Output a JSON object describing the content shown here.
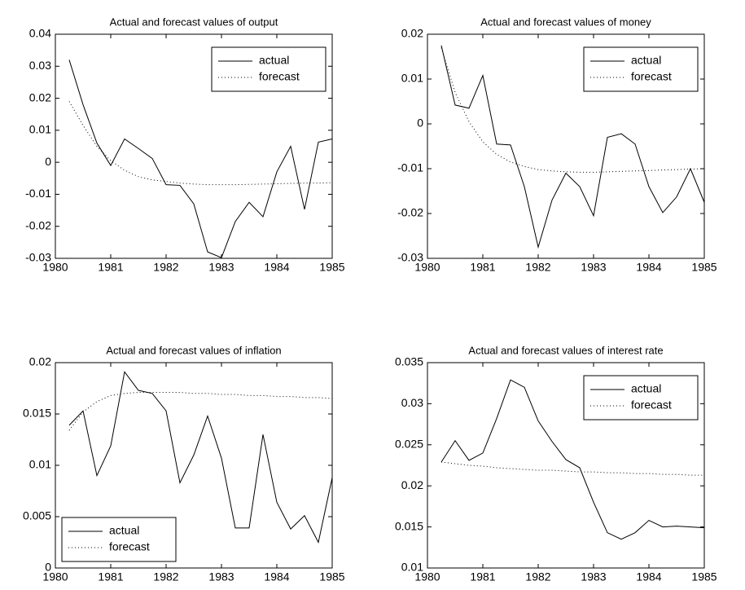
{
  "chart_data": [
    {
      "type": "line",
      "title": "Actual and forecast values of output",
      "x": [
        1980.25,
        1980.5,
        1980.75,
        1981,
        1981.25,
        1981.5,
        1981.75,
        1982,
        1982.25,
        1982.5,
        1982.75,
        1983,
        1983.25,
        1983.5,
        1983.75,
        1984,
        1984.25,
        1984.5,
        1984.75,
        1985
      ],
      "series": [
        {
          "name": "actual",
          "color": "#000000",
          "linestyle": "solid",
          "values": [
            0.032,
            0.018,
            0.006,
            -0.001,
            0.0073,
            0.0043,
            0.0012,
            -0.007,
            -0.0072,
            -0.013,
            -0.028,
            -0.0298,
            -0.0185,
            -0.0125,
            -0.017,
            -0.003,
            0.005,
            -0.0147,
            0.0063,
            0.0073
          ]
        },
        {
          "name": "forecast",
          "color": "#000000",
          "linestyle": "dotted",
          "values": [
            0.019,
            0.0115,
            0.005,
            0.0005,
            -0.0025,
            -0.0045,
            -0.0055,
            -0.006,
            -0.0065,
            -0.0068,
            -0.007,
            -0.007,
            -0.007,
            -0.0069,
            -0.0068,
            -0.0067,
            -0.0066,
            -0.0065,
            -0.0065,
            -0.0064
          ]
        }
      ],
      "xlim": [
        1980,
        1985
      ],
      "xticks": [
        1980,
        1981,
        1982,
        1983,
        1984,
        1985
      ],
      "ylim": [
        -0.03,
        0.04
      ],
      "yticks": [
        -0.03,
        -0.02,
        -0.01,
        0,
        0.01,
        0.02,
        0.03,
        0.04
      ],
      "grid": false,
      "legend": "upper right"
    },
    {
      "type": "line",
      "title": "Actual and forecast values of money",
      "x": [
        1980.25,
        1980.5,
        1980.75,
        1981,
        1981.25,
        1981.5,
        1981.75,
        1982,
        1982.25,
        1982.5,
        1982.75,
        1983,
        1983.25,
        1983.5,
        1983.75,
        1984,
        1984.25,
        1984.5,
        1984.75,
        1985
      ],
      "series": [
        {
          "name": "actual",
          "color": "#000000",
          "linestyle": "solid",
          "values": [
            0.0175,
            0.0042,
            0.0035,
            0.0108,
            -0.0045,
            -0.0047,
            -0.014,
            -0.0275,
            -0.017,
            -0.011,
            -0.014,
            -0.0205,
            -0.003,
            -0.0022,
            -0.0045,
            -0.014,
            -0.0198,
            -0.0163,
            -0.01,
            -0.0175
          ]
        },
        {
          "name": "forecast",
          "color": "#000000",
          "linestyle": "dotted",
          "values": [
            0.017,
            0.007,
            0.0005,
            -0.004,
            -0.0068,
            -0.0085,
            -0.0095,
            -0.0102,
            -0.0105,
            -0.0107,
            -0.0108,
            -0.0108,
            -0.0107,
            -0.0106,
            -0.0105,
            -0.0104,
            -0.0103,
            -0.0102,
            -0.0101,
            -0.01
          ]
        }
      ],
      "xlim": [
        1980,
        1985
      ],
      "xticks": [
        1980,
        1981,
        1982,
        1983,
        1984,
        1985
      ],
      "ylim": [
        -0.03,
        0.02
      ],
      "yticks": [
        -0.03,
        -0.02,
        -0.01,
        0,
        0.01,
        0.02
      ],
      "grid": false,
      "legend": "upper right"
    },
    {
      "type": "line",
      "title": "Actual and forecast values of inflation",
      "x": [
        1980.25,
        1980.5,
        1980.75,
        1981,
        1981.25,
        1981.5,
        1981.75,
        1982,
        1982.25,
        1982.5,
        1982.75,
        1983,
        1983.25,
        1983.5,
        1983.75,
        1984,
        1984.25,
        1984.5,
        1984.75,
        1985
      ],
      "series": [
        {
          "name": "actual",
          "color": "#000000",
          "linestyle": "solid",
          "values": [
            0.0139,
            0.0153,
            0.009,
            0.0119,
            0.0191,
            0.0173,
            0.017,
            0.0153,
            0.0083,
            0.011,
            0.0148,
            0.0107,
            0.0039,
            0.0039,
            0.013,
            0.0064,
            0.0038,
            0.0051,
            0.0025,
            0.0088
          ]
        },
        {
          "name": "forecast",
          "color": "#000000",
          "linestyle": "dotted",
          "values": [
            0.0134,
            0.0152,
            0.0162,
            0.0168,
            0.017,
            0.0171,
            0.0171,
            0.0171,
            0.0171,
            0.017,
            0.017,
            0.0169,
            0.0169,
            0.0168,
            0.0168,
            0.0167,
            0.0167,
            0.0166,
            0.0166,
            0.0165
          ]
        }
      ],
      "xlim": [
        1980,
        1985
      ],
      "xticks": [
        1980,
        1981,
        1982,
        1983,
        1984,
        1985
      ],
      "ylim": [
        0,
        0.02
      ],
      "yticks": [
        0,
        0.005,
        0.01,
        0.015,
        0.02
      ],
      "grid": false,
      "legend": "lower left"
    },
    {
      "type": "line",
      "title": "Actual and forecast values of interest rate",
      "x": [
        1980.25,
        1980.5,
        1980.75,
        1981,
        1981.25,
        1981.5,
        1981.75,
        1982,
        1982.25,
        1982.5,
        1982.75,
        1983,
        1983.25,
        1983.5,
        1983.75,
        1984,
        1984.25,
        1984.5,
        1984.75,
        1985
      ],
      "series": [
        {
          "name": "actual",
          "color": "#000000",
          "linestyle": "solid",
          "values": [
            0.0229,
            0.0255,
            0.0231,
            0.024,
            0.0282,
            0.0329,
            0.032,
            0.0279,
            0.0254,
            0.0232,
            0.0222,
            0.018,
            0.0143,
            0.0135,
            0.0143,
            0.0158,
            0.015,
            0.0151,
            0.015,
            0.0149
          ]
        },
        {
          "name": "forecast",
          "color": "#000000",
          "linestyle": "dotted",
          "values": [
            0.0229,
            0.0227,
            0.0225,
            0.0224,
            0.0222,
            0.0221,
            0.022,
            0.0219,
            0.0219,
            0.0218,
            0.0217,
            0.0217,
            0.0216,
            0.0216,
            0.0215,
            0.0215,
            0.0214,
            0.0214,
            0.0213,
            0.0213
          ]
        }
      ],
      "xlim": [
        1980,
        1985
      ],
      "xticks": [
        1980,
        1981,
        1982,
        1983,
        1984,
        1985
      ],
      "ylim": [
        0.01,
        0.035
      ],
      "yticks": [
        0.01,
        0.015,
        0.02,
        0.025,
        0.03,
        0.035
      ],
      "grid": false,
      "legend": "upper right"
    }
  ]
}
